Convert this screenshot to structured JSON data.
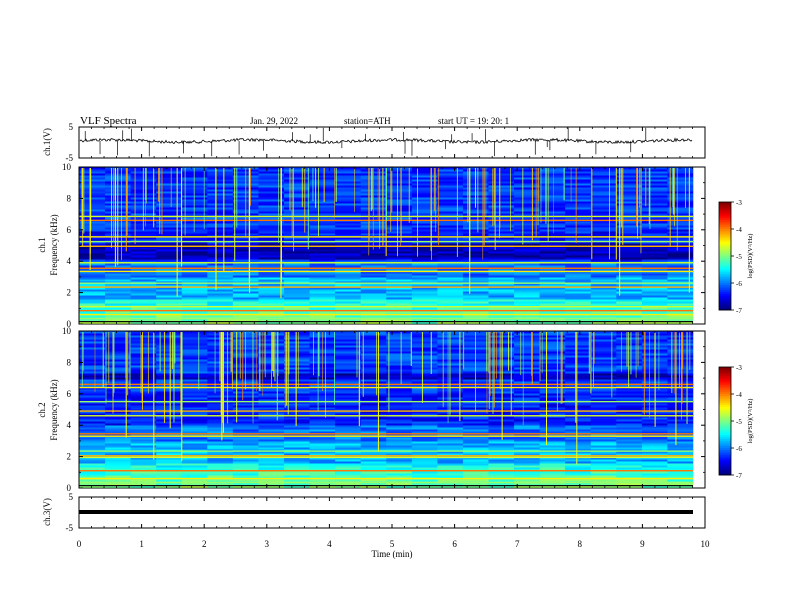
{
  "header": {
    "title": "VLF  Spectra",
    "date": "Jan. 29, 2022",
    "station": "station=ATH",
    "start": "start  UT  =    19: 20: 1"
  },
  "chart_data": [
    {
      "type": "line",
      "name": "ch1-voltage",
      "ylabel": "ch.1(V)",
      "ylim": [
        -5,
        5
      ],
      "yticks": [
        "5",
        "-5"
      ],
      "xlim": [
        0,
        10
      ],
      "level": 0.5,
      "line_color": "#000000"
    },
    {
      "type": "heatmap",
      "name": "ch1-spectrogram",
      "ylabel": "ch.1\nFrequency  (kHz)",
      "ylabel_lines": [
        "ch.1",
        "Frequency  (kHz)"
      ],
      "ylim": [
        0,
        10
      ],
      "yticks": [
        "0",
        "2",
        "4",
        "6",
        "8",
        "10"
      ],
      "xlim": [
        0,
        10
      ],
      "data_extent_min": 9.8,
      "colorbar": {
        "label": "log(PSD)(V²/Hz)",
        "range": [
          -7,
          -3
        ],
        "ticks": [
          "-3",
          "-4",
          "-5",
          "-6",
          "-7"
        ]
      },
      "bright_lines_khz": [
        0.35,
        0.6,
        0.85,
        1.1,
        2.35,
        2.6,
        3.35,
        3.55,
        3.9,
        4.95,
        5.25,
        5.55,
        6.6,
        6.85
      ],
      "dark_band_khz": [
        4.05,
        5.1
      ]
    },
    {
      "type": "heatmap",
      "name": "ch2-spectrogram",
      "ylabel": "ch.2\nFrequency  (kHz)",
      "ylabel_lines": [
        "ch.2",
        "Frequency  (kHz)"
      ],
      "ylim": [
        0,
        10
      ],
      "yticks": [
        "0",
        "2",
        "4",
        "6",
        "8",
        "10"
      ],
      "xlim": [
        0,
        10
      ],
      "data_extent_min": 9.8,
      "colorbar": {
        "label": "log(PSD)(V²/Hz)",
        "range": [
          -7,
          -3
        ],
        "ticks": [
          "-3",
          "-4",
          "-5",
          "-6",
          "-7"
        ]
      },
      "bright_lines_khz": [
        0.35,
        0.6,
        1.1,
        1.95,
        2.05,
        2.35,
        3.3,
        3.45,
        4.6,
        4.9,
        5.5,
        6.4,
        6.6
      ],
      "dark_band_khz": [
        6.9,
        7.3
      ]
    },
    {
      "type": "line",
      "name": "ch3-voltage",
      "ylabel": "ch.3(V)",
      "ylim": [
        -5,
        5
      ],
      "yticks": [
        "5",
        "-5"
      ],
      "xlim": [
        0,
        10
      ],
      "xlabel": "Time  (min)",
      "xticks": [
        "0",
        "1",
        "2",
        "3",
        "4",
        "5",
        "6",
        "7",
        "8",
        "9",
        "10"
      ],
      "level": 0,
      "line_color": "#000000"
    }
  ]
}
